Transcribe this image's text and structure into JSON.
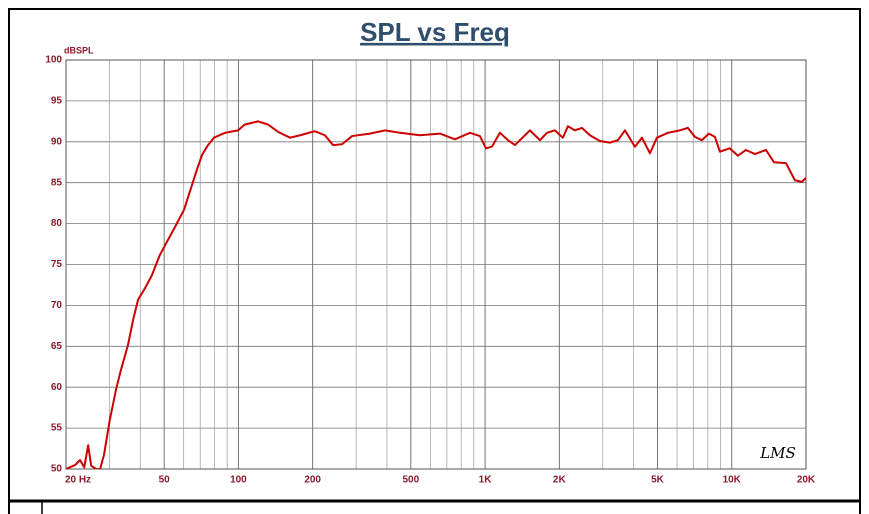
{
  "chart_data": {
    "type": "line",
    "title": "SPL vs Freq",
    "ylabel": "dBSPL",
    "annotation": "LMS",
    "log_x": true,
    "grid": true,
    "color": "#cc0000",
    "xlim": [
      20,
      20000
    ],
    "ylim": [
      50,
      100
    ],
    "xticks": [
      {
        "value": 20,
        "label": "20 Hz"
      },
      50,
      100,
      200,
      500,
      {
        "value": 1000,
        "label": "1K"
      },
      {
        "value": 2000,
        "label": "2K"
      },
      {
        "value": 5000,
        "label": "5K"
      },
      {
        "value": 10000,
        "label": "10K"
      },
      {
        "value": 20000,
        "label": "20K"
      }
    ],
    "xgrid": [
      30,
      40,
      60,
      70,
      80,
      90,
      300,
      400,
      600,
      700,
      800,
      900,
      3000,
      4000,
      6000,
      7000,
      8000,
      9000
    ],
    "yticks": [
      50,
      55,
      60,
      65,
      70,
      75,
      80,
      85,
      90,
      95,
      100
    ],
    "x": [
      20,
      21.8,
      22.8,
      23.7,
      24.6,
      25.3,
      26.5,
      27.5,
      28.5,
      30.1,
      31.9,
      33.4,
      35.7,
      37.4,
      39.2,
      41.8,
      44.6,
      48.1,
      51.8,
      55.8,
      60.2,
      64.8,
      67.9,
      71.2,
      75.3,
      79.6,
      88.2,
      99.6,
      106,
      120,
      132,
      145,
      162,
      178,
      204,
      224,
      242,
      263,
      289,
      341,
      393,
      452,
      544,
      656,
      755,
      868,
      953,
      1008,
      1066,
      1148,
      1238,
      1322,
      1451,
      1520,
      1669,
      1782,
      1920,
      2068,
      2166,
      2314,
      2470,
      2661,
      2921,
      3208,
      3456,
      3690,
      4050,
      4324,
      4660,
      4974,
      5510,
      6164,
      6640,
      7090,
      7568,
      8080,
      8546,
      8954,
      9828,
      10594,
      11416,
      12416,
      13758,
      14826,
      16578,
      18032,
      19250,
      20000
    ],
    "values": [
      50,
      50.5,
      51.1,
      50.2,
      52.9,
      50.4,
      50,
      50,
      51.7,
      56,
      59.7,
      62.1,
      65.2,
      68.2,
      70.7,
      72.1,
      73.7,
      76.2,
      78,
      79.8,
      81.7,
      84.7,
      86.6,
      88.4,
      89.6,
      90.5,
      91.1,
      91.4,
      92.1,
      92.5,
      92.1,
      91.2,
      90.5,
      90.8,
      91.3,
      90.8,
      89.6,
      89.7,
      90.7,
      91,
      91.4,
      91.1,
      90.8,
      91,
      90.3,
      91.1,
      90.7,
      89.2,
      89.4,
      91.1,
      90.2,
      89.6,
      90.8,
      91.4,
      90.2,
      91.1,
      91.4,
      90.5,
      91.9,
      91.4,
      91.7,
      90.8,
      90.1,
      89.9,
      90.2,
      91.4,
      89.4,
      90.5,
      88.6,
      90.5,
      91.1,
      91.4,
      91.7,
      90.6,
      90.2,
      91,
      90.6,
      88.8,
      89.2,
      88.3,
      89,
      88.5,
      89,
      87.5,
      87.4,
      85.3,
      85.1,
      85.6
    ]
  }
}
